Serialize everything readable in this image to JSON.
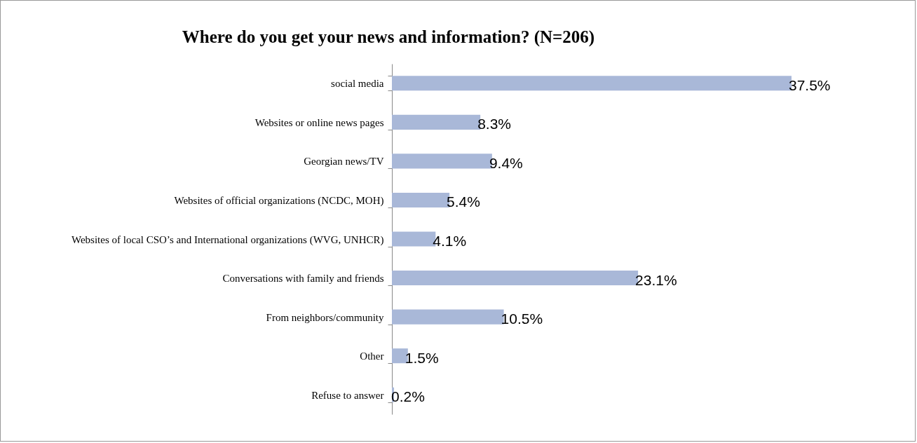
{
  "chart_data": {
    "type": "bar",
    "orientation": "horizontal",
    "title": "Where do you get your news and information? (N=206)",
    "categories": [
      "social media",
      "Websites or online news pages",
      "Georgian news/TV",
      "Websites of official organizations (NCDC, MOH)",
      "Websites of local CSO’s and International organizations (WVG, UNHCR)",
      "Conversations with family and friends",
      "From neighbors/community",
      "Other",
      "Refuse to answer"
    ],
    "values": [
      37.5,
      8.3,
      9.4,
      5.4,
      4.1,
      23.1,
      10.5,
      1.5,
      0.2
    ],
    "value_labels": [
      "37.5%",
      "8.3%",
      "9.4%",
      "5.4%",
      "4.1%",
      "23.1%",
      "10.5%",
      "1.5%",
      "0.2%"
    ],
    "color": "#a9b8d8"
  }
}
